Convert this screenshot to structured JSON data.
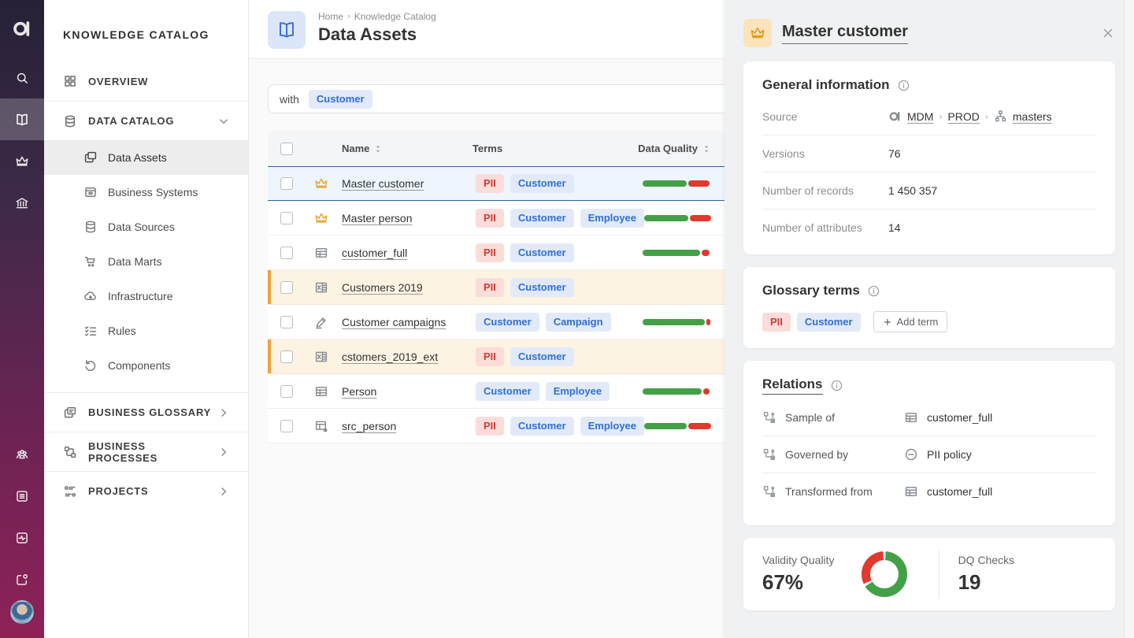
{
  "colors": {
    "accent": "#2e6fd8",
    "green": "#43a047",
    "red": "#e2382e",
    "warning_orange": "#f0a23c"
  },
  "rail": {
    "top_items": [
      {
        "icon": "search-icon",
        "active": false
      },
      {
        "icon": "book-icon",
        "active": true
      },
      {
        "icon": "crown-icon",
        "active": false
      },
      {
        "icon": "bank-icon",
        "active": false
      }
    ],
    "bottom_items": [
      {
        "icon": "people-icon"
      },
      {
        "icon": "list-icon"
      },
      {
        "icon": "pulse-icon"
      },
      {
        "icon": "tab-dot-icon"
      }
    ]
  },
  "sidebar": {
    "title": "KNOWLEDGE CATALOG",
    "items": [
      {
        "label": "OVERVIEW",
        "icon": "grid-icon",
        "type": "section",
        "chevron": "none",
        "bordered": false
      },
      {
        "label": "DATA CATALOG",
        "icon": "database-icon",
        "type": "section",
        "chevron": "down",
        "bordered": true
      },
      {
        "label": "Data Assets",
        "icon": "docs-icon",
        "type": "sub",
        "active": true
      },
      {
        "label": "Business Systems",
        "icon": "box-icon",
        "type": "sub"
      },
      {
        "label": "Data Sources",
        "icon": "database-icon",
        "type": "sub"
      },
      {
        "label": "Data Marts",
        "icon": "cart-icon",
        "type": "sub"
      },
      {
        "label": "Infrastructure",
        "icon": "cloud-icon",
        "type": "sub"
      },
      {
        "label": "Rules",
        "icon": "checklist-icon",
        "type": "sub"
      },
      {
        "label": "Components",
        "icon": "undo-icon",
        "type": "sub",
        "gap_after": true
      },
      {
        "label": "BUSINESS GLOSSARY",
        "icon": "copy-icon",
        "type": "section",
        "chevron": "right",
        "bordered": true
      },
      {
        "label": "BUSINESS PROCESSES",
        "icon": "process-icon",
        "type": "section",
        "chevron": "right",
        "bordered": true
      },
      {
        "label": "PROJECTS",
        "icon": "kanban-icon",
        "type": "section",
        "chevron": "right",
        "bordered": true
      }
    ]
  },
  "main": {
    "breadcrumb": [
      "Home",
      "Knowledge Catalog"
    ],
    "title": "Data Assets",
    "filter": {
      "label": "with",
      "chips": [
        {
          "label": "Customer",
          "color": "blue"
        }
      ]
    },
    "table": {
      "columns": {
        "name": "Name",
        "terms": "Terms",
        "quality": "Data Quality"
      },
      "rows": [
        {
          "name": "Master customer",
          "icon": "crown-icon",
          "terms": [
            {
              "label": "PII",
              "color": "red"
            },
            {
              "label": "Customer",
              "color": "blue"
            }
          ],
          "dq": {
            "green": 64,
            "red": 30
          },
          "state": "selected"
        },
        {
          "name": "Master person",
          "icon": "crown-icon",
          "terms": [
            {
              "label": "PII",
              "color": "red"
            },
            {
              "label": "Customer",
              "color": "blue"
            },
            {
              "label": "Employee",
              "color": "blue"
            }
          ],
          "dq": {
            "green": 64,
            "red": 30
          },
          "state": ""
        },
        {
          "name": "customer_full",
          "icon": "table-icon",
          "terms": [
            {
              "label": "PII",
              "color": "red"
            },
            {
              "label": "Customer",
              "color": "blue"
            }
          ],
          "dq": {
            "green": 83,
            "red": 11
          },
          "state": ""
        },
        {
          "name": "Customers 2019",
          "icon": "excel-icon",
          "terms": [
            {
              "label": "PII",
              "color": "red"
            },
            {
              "label": "Customer",
              "color": "blue"
            }
          ],
          "dq": null,
          "state": "warning"
        },
        {
          "name": "Customer campaigns",
          "icon": "edit-icon",
          "terms": [
            {
              "label": "Customer",
              "color": "blue"
            },
            {
              "label": "Campaign",
              "color": "blue"
            }
          ],
          "dq": {
            "green": 90,
            "red": 5
          },
          "state": ""
        },
        {
          "name": "cstomers_2019_ext",
          "icon": "excel-icon",
          "terms": [
            {
              "label": "PII",
              "color": "red"
            },
            {
              "label": "Customer",
              "color": "blue"
            }
          ],
          "dq": null,
          "state": "warning"
        },
        {
          "name": "Person",
          "icon": "table-icon",
          "terms": [
            {
              "label": "Customer",
              "color": "blue"
            },
            {
              "label": "Employee",
              "color": "blue"
            }
          ],
          "dq": {
            "green": 85,
            "red": 9
          },
          "state": ""
        },
        {
          "name": "src_person",
          "icon": "table-dot-icon",
          "terms": [
            {
              "label": "PII",
              "color": "red"
            },
            {
              "label": "Customer",
              "color": "blue"
            },
            {
              "label": "Employee",
              "color": "blue"
            }
          ],
          "dq": {
            "green": 61,
            "red": 33
          },
          "state": ""
        }
      ]
    }
  },
  "panel": {
    "title": "Master customer",
    "general": {
      "heading": "General information",
      "source_label": "Source",
      "source_links": [
        "MDM",
        "PROD",
        "masters"
      ],
      "rows": [
        {
          "label": "Versions",
          "value": "76"
        },
        {
          "label": "Number of records",
          "value": "1 450 357"
        },
        {
          "label": "Number of attributes",
          "value": "14"
        }
      ]
    },
    "glossary": {
      "heading": "Glossary terms",
      "terms": [
        {
          "label": "PII",
          "color": "red"
        },
        {
          "label": "Customer",
          "color": "blue"
        }
      ],
      "add_label": "Add term"
    },
    "relations": {
      "heading": "Relations",
      "rows": [
        {
          "label": "Sample of",
          "value": "customer_full",
          "value_icon": "table-icon"
        },
        {
          "label": "Governed by",
          "value": "PII policy",
          "value_icon": "minus-circle-icon"
        },
        {
          "label": "Transformed from",
          "value": "customer_full",
          "value_icon": "table-icon"
        }
      ]
    },
    "quality": {
      "left_label": "Validity Quality",
      "left_value": "67%",
      "donut": {
        "green": 67,
        "red": 33
      },
      "right_label": "DQ Checks",
      "right_value": "19"
    }
  }
}
